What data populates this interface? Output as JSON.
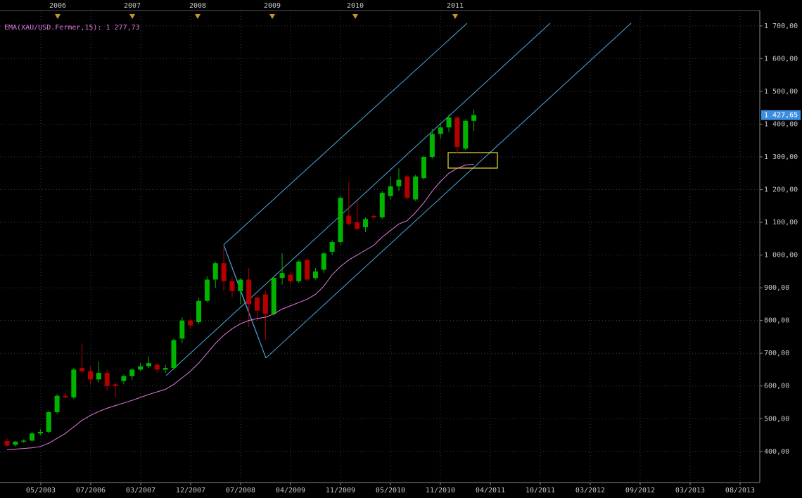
{
  "chart_data": {
    "type": "candlestick",
    "indicator_label": "EMA(XAU/USD.Fermer,15): 1 277,73",
    "last_price_label": "1 427,65",
    "up_color": "#00b400",
    "down_color": "#b40000",
    "open": [
      432,
      420,
      430,
      433,
      455,
      460,
      520,
      570,
      565,
      655,
      645,
      620,
      640,
      605,
      615,
      630,
      650,
      660,
      665,
      650,
      655,
      745,
      800,
      795,
      860,
      925,
      975,
      920,
      890,
      925,
      870,
      880,
      820,
      930,
      940,
      920,
      985,
      930,
      955,
      1010,
      1040,
      1120,
      1100,
      1085,
      1120,
      1115,
      1180,
      1210,
      1240,
      1170,
      1235,
      1300,
      1370,
      1390,
      1420,
      1325,
      1410
    ],
    "high": [
      440,
      432,
      437,
      460,
      468,
      525,
      575,
      578,
      655,
      730,
      660,
      675,
      650,
      612,
      635,
      655,
      670,
      690,
      670,
      665,
      745,
      810,
      805,
      870,
      935,
      980,
      1025,
      935,
      930,
      960,
      875,
      890,
      935,
      1005,
      950,
      985,
      990,
      960,
      1010,
      1045,
      1180,
      1225,
      1165,
      1115,
      1125,
      1195,
      1240,
      1265,
      1245,
      1245,
      1305,
      1385,
      1400,
      1430,
      1425,
      1415,
      1445
    ],
    "low": [
      414,
      415,
      426,
      430,
      450,
      455,
      515,
      560,
      560,
      640,
      605,
      610,
      585,
      565,
      605,
      618,
      645,
      655,
      640,
      640,
      650,
      730,
      775,
      790,
      855,
      900,
      890,
      870,
      850,
      780,
      800,
      740,
      815,
      910,
      910,
      915,
      920,
      925,
      945,
      1000,
      1030,
      1090,
      1075,
      1070,
      1110,
      1110,
      1170,
      1195,
      1170,
      1165,
      1230,
      1295,
      1355,
      1375,
      1310,
      1320,
      1380
    ],
    "close": [
      418,
      430,
      433,
      455,
      460,
      520,
      570,
      565,
      650,
      645,
      620,
      640,
      600,
      600,
      630,
      650,
      660,
      670,
      650,
      655,
      740,
      800,
      785,
      860,
      925,
      975,
      920,
      890,
      925,
      850,
      830,
      820,
      930,
      945,
      920,
      980,
      925,
      950,
      1005,
      1040,
      1175,
      1095,
      1080,
      1110,
      1115,
      1190,
      1210,
      1230,
      1175,
      1240,
      1300,
      1370,
      1390,
      1420,
      1330,
      1410,
      1427.65
    ],
    "series": [
      {
        "name": "EMA",
        "color": "#e27ae2",
        "values": [
          405,
          407,
          409,
          411,
          415,
          425,
          440,
          455,
          475,
          495,
          510,
          522,
          532,
          540,
          548,
          556,
          565,
          574,
          582,
          590,
          605,
          625,
          645,
          670,
          700,
          730,
          755,
          775,
          790,
          800,
          806,
          810,
          820,
          835,
          845,
          855,
          865,
          880,
          905,
          940,
          965,
          985,
          1000,
          1015,
          1030,
          1055,
          1075,
          1095,
          1105,
          1130,
          1160,
          1195,
          1225,
          1250,
          1265,
          1275,
          1277.73
        ]
      }
    ],
    "ylim": [
      305,
      1747
    ],
    "yticks": [
      {
        "value": 400,
        "label": "400,00"
      },
      {
        "value": 500,
        "label": "500,00"
      },
      {
        "value": 600,
        "label": "600,00"
      },
      {
        "value": 700,
        "label": "700,00"
      },
      {
        "value": 800,
        "label": "800,00"
      },
      {
        "value": 900,
        "label": "900,00"
      },
      {
        "value": 1000,
        "label": "1 000,00"
      },
      {
        "value": 1100,
        "label": "1 100,00"
      },
      {
        "value": 1200,
        "label": "1 200,00"
      },
      {
        "value": 1300,
        "label": "1 300,00"
      },
      {
        "value": 1400,
        "label": "1 400,00"
      },
      {
        "value": 1500,
        "label": "1 500,00"
      },
      {
        "value": 1600,
        "label": "1 600,00"
      },
      {
        "value": 1700,
        "label": "1 700,00"
      }
    ],
    "x_axis_labels": [
      "05/2003",
      "07/2006",
      "03/2007",
      "12/2007",
      "07/2008",
      "04/2009",
      "11/2009",
      "05/2010",
      "11/2010",
      "04/2011",
      "10/2011",
      "03/2012",
      "09/2012",
      "03/2013",
      "08/2013"
    ],
    "top_axis_labels": [
      "2006",
      "2007",
      "2008",
      "2009",
      "2010",
      "2011"
    ]
  }
}
